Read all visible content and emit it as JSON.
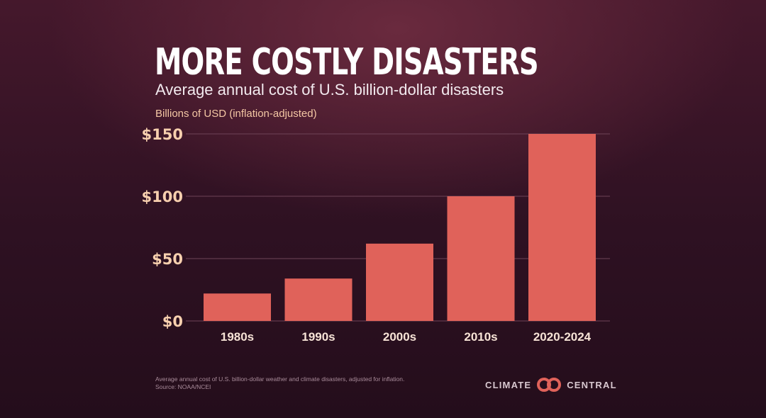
{
  "title": "MORE COSTLY DISASTERS",
  "subtitle": "Average annual cost of U.S. billion-dollar disasters",
  "unit_label": "Billions of USD (inflation-adjusted)",
  "colors": {
    "bar": "#e0625a",
    "grid": "#6e4357",
    "ytick": "#f7cfae",
    "xtick": "#f7e3d6"
  },
  "chart_data": {
    "type": "bar",
    "title": "MORE COSTLY DISASTERS",
    "subtitle": "Average annual cost of U.S. billion-dollar disasters",
    "ylabel": "Billions of USD (inflation-adjusted)",
    "xlabel": "",
    "categories": [
      "1980s",
      "1990s",
      "2000s",
      "2010s",
      "2020-2024"
    ],
    "values": [
      22,
      34,
      62,
      100,
      150
    ],
    "ylim": [
      0,
      150
    ],
    "yticks": [
      {
        "value": 0,
        "label": "$0"
      },
      {
        "value": 50,
        "label": "$50"
      },
      {
        "value": 100,
        "label": "$100"
      },
      {
        "value": 150,
        "label": "$150"
      }
    ],
    "grid": true,
    "legend": "none"
  },
  "footnote": {
    "line1": "Average annual cost of U.S. billion-dollar weather and climate disasters, adjusted for inflation.",
    "line2": "Source: NOAA/NCEI"
  },
  "logo": {
    "left": "CLIMATE",
    "right": "CENTRAL",
    "icon": "climate-central-rings-icon"
  }
}
